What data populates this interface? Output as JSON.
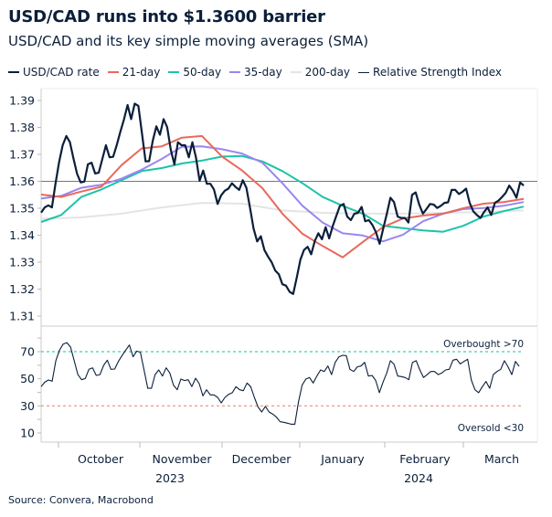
{
  "title": "USD/CAD runs into $1.3600 barrier",
  "subtitle": "USD/CAD and its key simple moving averages (SMA)",
  "source": "Source: Convera, Macrobond",
  "legend": [
    {
      "label": "USD/CAD rate",
      "color": "#0b1f3a"
    },
    {
      "label": "21-day",
      "color": "#e8695a"
    },
    {
      "label": "50-day",
      "color": "#1cc3a8"
    },
    {
      "label": "35-day",
      "color": "#9a86f0"
    },
    {
      "label": "200-day",
      "color": "#e4e4e4"
    },
    {
      "label": "Relative Strength Index",
      "color": "#0b1f3a"
    }
  ],
  "chart_data": [
    {
      "type": "line",
      "ylim": [
        1.305,
        1.395
      ],
      "yticks": [
        "1.31",
        "1.32",
        "1.33",
        "1.34",
        "1.35",
        "1.36",
        "1.37",
        "1.38",
        "1.39"
      ],
      "reference_line": 1.36,
      "series": [
        {
          "name": "USD/CAD rate",
          "color": "#0b1f3a",
          "values": [
            1.3484,
            1.3503,
            1.3511,
            1.3503,
            1.3593,
            1.3672,
            1.3734,
            1.3768,
            1.3745,
            1.3683,
            1.3627,
            1.3596,
            1.3599,
            1.3663,
            1.3669,
            1.3629,
            1.3632,
            1.3683,
            1.3734,
            1.3689,
            1.3691,
            1.3734,
            1.3784,
            1.3829,
            1.3883,
            1.3831,
            1.3888,
            1.388,
            1.3779,
            1.3674,
            1.3675,
            1.375,
            1.3804,
            1.3773,
            1.3831,
            1.3801,
            1.3717,
            1.3663,
            1.3745,
            1.3734,
            1.3734,
            1.3689,
            1.3745,
            1.3689,
            1.3602,
            1.364,
            1.3591,
            1.3591,
            1.357,
            1.3516,
            1.3548,
            1.3565,
            1.3573,
            1.3593,
            1.3579,
            1.3568,
            1.3604,
            1.3576,
            1.3503,
            1.3424,
            1.3377,
            1.3396,
            1.3345,
            1.3321,
            1.33,
            1.3269,
            1.3255,
            1.3218,
            1.3213,
            1.319,
            1.3182,
            1.3244,
            1.3309,
            1.3345,
            1.3357,
            1.3329,
            1.3379,
            1.3407,
            1.3385,
            1.343,
            1.3388,
            1.3435,
            1.3473,
            1.3509,
            1.3516,
            1.3469,
            1.3456,
            1.348,
            1.3483,
            1.3505,
            1.3452,
            1.3456,
            1.3438,
            1.3411,
            1.3368,
            1.3424,
            1.348,
            1.3539,
            1.3523,
            1.3469,
            1.3464,
            1.3464,
            1.3447,
            1.355,
            1.3559,
            1.3514,
            1.348,
            1.3497,
            1.3516,
            1.3514,
            1.3501,
            1.3509,
            1.352,
            1.3522,
            1.3568,
            1.3568,
            1.3553,
            1.3561,
            1.3573,
            1.352,
            1.3489,
            1.3475,
            1.3464,
            1.3486,
            1.3503,
            1.3475,
            1.352,
            1.3528,
            1.3542,
            1.3557,
            1.3584,
            1.3565,
            1.3539,
            1.3596,
            1.3584
          ]
        },
        {
          "name": "200-day",
          "color": "#e4e4e4",
          "values": [
            1.3461,
            1.3466,
            1.348,
            1.3503,
            1.352,
            1.3517,
            1.3492,
            1.3483,
            1.348,
            1.348,
            1.3483,
            1.3486,
            1.3492
          ]
        },
        {
          "name": "50-day",
          "color": "#1cc3a8",
          "values": [
            1.3449,
            1.3475,
            1.3542,
            1.357,
            1.3604,
            1.3638,
            1.3649,
            1.3666,
            1.3677,
            1.3692,
            1.3694,
            1.3674,
            1.3638,
            1.3593,
            1.3542,
            1.3509,
            1.348,
            1.3435,
            1.3426,
            1.3418,
            1.3413,
            1.3435,
            1.3469,
            1.3489,
            1.3506
          ]
        },
        {
          "name": "35-day",
          "color": "#9a86f0",
          "values": [
            1.3536,
            1.3546,
            1.3576,
            1.3587,
            1.361,
            1.3643,
            1.3683,
            1.3728,
            1.373,
            1.3719,
            1.3703,
            1.3669,
            1.3593,
            1.3509,
            1.3447,
            1.3407,
            1.3399,
            1.3377,
            1.3402,
            1.3452,
            1.348,
            1.3497,
            1.3501,
            1.3509,
            1.3523
          ]
        },
        {
          "name": "21-day",
          "color": "#e8695a",
          "values": [
            1.3551,
            1.3542,
            1.3562,
            1.358,
            1.366,
            1.3722,
            1.373,
            1.3762,
            1.3768,
            1.3692,
            1.364,
            1.3575,
            1.348,
            1.3405,
            1.336,
            1.3318,
            1.3375,
            1.343,
            1.3462,
            1.3473,
            1.348,
            1.35,
            1.3517,
            1.3523,
            1.3535
          ]
        }
      ]
    },
    {
      "type": "line",
      "ylim": [
        3,
        82
      ],
      "yticks": [
        "10",
        "30",
        "50",
        "70"
      ],
      "overbought": {
        "value": 70,
        "label": "Overbought >70",
        "color": "#3fcfb8"
      },
      "oversold": {
        "value": 30,
        "label": "Oversold <30",
        "color": "#f08a7e"
      },
      "series": [
        {
          "name": "Relative Strength Index",
          "color": "#0b1f3a",
          "values": [
            44.2,
            47.5,
            49.1,
            48.2,
            63.3,
            71.1,
            75.6,
            76.7,
            73.4,
            63.3,
            53.1,
            49.3,
            50.2,
            57.0,
            58.1,
            52.5,
            53.1,
            59.9,
            63.7,
            57.0,
            57.2,
            62.8,
            67.1,
            71.1,
            74.9,
            66.2,
            70.4,
            69.6,
            56.5,
            43.0,
            43.0,
            53.1,
            56.5,
            52.0,
            58.1,
            54.3,
            45.3,
            41.9,
            49.8,
            48.7,
            49.3,
            44.2,
            50.4,
            46.4,
            37.4,
            41.9,
            38.1,
            38.1,
            36.3,
            32.2,
            36.3,
            38.5,
            39.7,
            44.2,
            41.9,
            41.2,
            46.9,
            44.2,
            36.3,
            29.1,
            25.5,
            29.6,
            25.5,
            23.9,
            21.7,
            18.3,
            17.9,
            17.2,
            16.5,
            16.5,
            32.9,
            45.3,
            49.8,
            50.9,
            46.9,
            52.0,
            56.5,
            55.4,
            59.4,
            53.1,
            62.1,
            66.2,
            67.3,
            67.1,
            57.0,
            55.4,
            58.8,
            59.4,
            62.1,
            52.0,
            52.5,
            48.7,
            39.7,
            47.5,
            54.3,
            63.3,
            60.6,
            52.0,
            51.6,
            50.9,
            49.3,
            62.1,
            63.3,
            56.5,
            50.9,
            53.1,
            55.4,
            55.4,
            53.1,
            54.3,
            56.5,
            57.0,
            63.7,
            64.4,
            61.0,
            62.8,
            64.4,
            49.1,
            41.9,
            39.7,
            44.2,
            48.0,
            43.0,
            53.1,
            55.4,
            57.0,
            63.3,
            58.8,
            53.1,
            62.8,
            59.2
          ]
        }
      ]
    }
  ],
  "x_axis": {
    "months": [
      "October",
      "November",
      "December",
      "January",
      "February",
      "March"
    ],
    "years": [
      "2023",
      "2024"
    ]
  }
}
